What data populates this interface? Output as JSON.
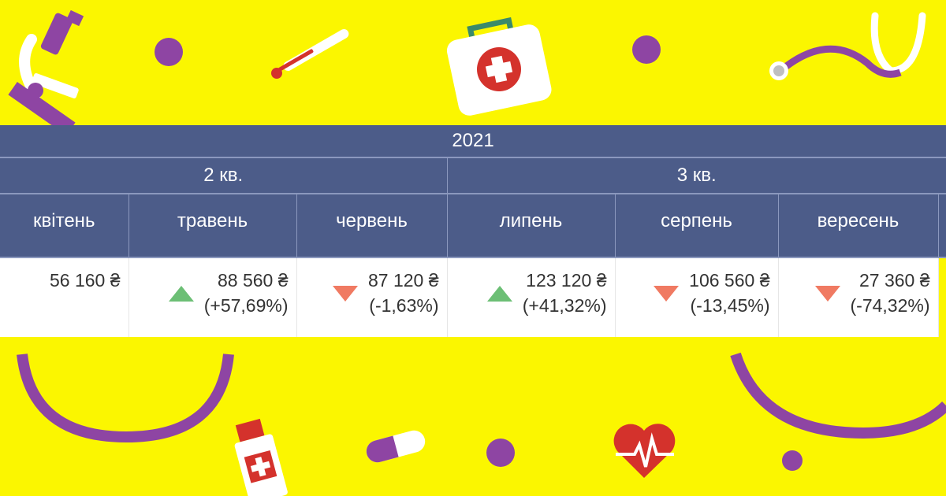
{
  "table": {
    "year": "2021",
    "quarters": [
      "2 кв.",
      "3 кв."
    ],
    "months": [
      "квітень",
      "травень",
      "червень",
      "липень",
      "серпень",
      "вересень"
    ],
    "cells": [
      {
        "value": "56 160 ₴",
        "change": "",
        "trend": "none"
      },
      {
        "value": "88 560 ₴",
        "change": "(+57,69%)",
        "trend": "up"
      },
      {
        "value": "87 120 ₴",
        "change": "(-1,63%)",
        "trend": "down"
      },
      {
        "value": "123 120 ₴",
        "change": "(+41,32%)",
        "trend": "up"
      },
      {
        "value": "106 560 ₴",
        "change": "(-13,45%)",
        "trend": "down"
      },
      {
        "value": "27 360 ₴",
        "change": "(-74,32%)",
        "trend": "down"
      }
    ]
  },
  "colors": {
    "background": "#fbf600",
    "header": "#4c5c89",
    "accent_purple": "#8e45a3",
    "trend_up": "#6cbf75",
    "trend_down": "#f07a62"
  },
  "decorations": [
    "microscope-icon",
    "thermometer-icon",
    "first-aid-kit-icon",
    "stethoscope-icon",
    "pill-bottle-icon",
    "capsule-icon",
    "heartbeat-icon"
  ]
}
